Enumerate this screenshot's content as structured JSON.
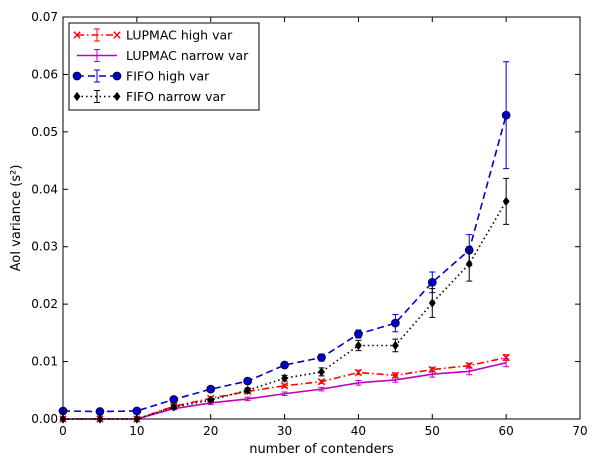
{
  "chart_data": {
    "type": "line",
    "title": "",
    "xlabel": "number of contenders",
    "ylabel": "AoI variance (s²)",
    "xlim": [
      0,
      70
    ],
    "ylim": [
      0,
      0.07
    ],
    "xticks": [
      0,
      10,
      20,
      30,
      40,
      50,
      60,
      70
    ],
    "yticks": [
      0.0,
      0.01,
      0.02,
      0.03,
      0.04,
      0.05,
      0.06,
      0.07
    ],
    "xtick_labels": [
      "0",
      "10",
      "20",
      "30",
      "40",
      "50",
      "60",
      "70"
    ],
    "ytick_labels": [
      "0.00",
      "0.01",
      "0.02",
      "0.03",
      "0.04",
      "0.05",
      "0.06",
      "0.07"
    ],
    "grid": false,
    "legend_position": "top-left",
    "series": [
      {
        "name": "LUPMAC high var",
        "color": "#ff0000",
        "line_style": "dashdot",
        "marker": "x",
        "x": [
          0,
          5,
          10,
          15,
          20,
          25,
          30,
          35,
          40,
          45,
          50,
          55,
          60
        ],
        "y": [
          0.0,
          0.0,
          0.0,
          0.0022,
          0.0036,
          0.0048,
          0.0058,
          0.0065,
          0.0081,
          0.0076,
          0.0086,
          0.0093,
          0.0107
        ],
        "err": [
          0.0,
          0.0,
          0.0,
          0.0003,
          0.0003,
          0.0003,
          0.0003,
          0.0003,
          0.0004,
          0.0004,
          0.0004,
          0.0004,
          0.0005
        ]
      },
      {
        "name": "LUPMAC narrow var",
        "color": "#bf00bf",
        "line_style": "solid",
        "marker": "none",
        "x": [
          0,
          5,
          10,
          15,
          20,
          25,
          30,
          35,
          40,
          45,
          50,
          55,
          60
        ],
        "y": [
          0.0,
          0.0,
          0.0,
          0.0018,
          0.0028,
          0.0035,
          0.0044,
          0.0052,
          0.0063,
          0.0068,
          0.0078,
          0.0083,
          0.0098
        ],
        "err": [
          0.0,
          0.0,
          0.0,
          0.0002,
          0.0003,
          0.0003,
          0.0003,
          0.0003,
          0.0004,
          0.0004,
          0.0005,
          0.0006,
          0.0007
        ]
      },
      {
        "name": "FIFO high var",
        "color": "#0000cc",
        "line_style": "dashed",
        "marker": "circle",
        "x": [
          0,
          5,
          10,
          15,
          20,
          25,
          30,
          35,
          40,
          45,
          50,
          55,
          60
        ],
        "y": [
          0.0014,
          0.0013,
          0.0014,
          0.0034,
          0.0052,
          0.0066,
          0.0094,
          0.0107,
          0.0148,
          0.0167,
          0.0238,
          0.0294,
          0.0529
        ],
        "err": [
          0.0003,
          0.0002,
          0.0002,
          0.0003,
          0.0003,
          0.0003,
          0.0005,
          0.0006,
          0.0007,
          0.0015,
          0.0018,
          0.0027,
          0.0093
        ]
      },
      {
        "name": "FIFO narrow var",
        "color": "#000000",
        "line_style": "dotted",
        "marker": "diamond",
        "x": [
          0,
          5,
          10,
          15,
          20,
          25,
          30,
          35,
          40,
          45,
          50,
          55,
          60
        ],
        "y": [
          0.0,
          0.0,
          0.0,
          0.0021,
          0.0033,
          0.005,
          0.0071,
          0.0082,
          0.0128,
          0.0128,
          0.0202,
          0.027,
          0.0379
        ],
        "err": [
          0.0,
          0.0,
          0.0,
          0.0003,
          0.0003,
          0.0004,
          0.0005,
          0.0007,
          0.0009,
          0.0011,
          0.0025,
          0.003,
          0.004
        ]
      }
    ]
  }
}
